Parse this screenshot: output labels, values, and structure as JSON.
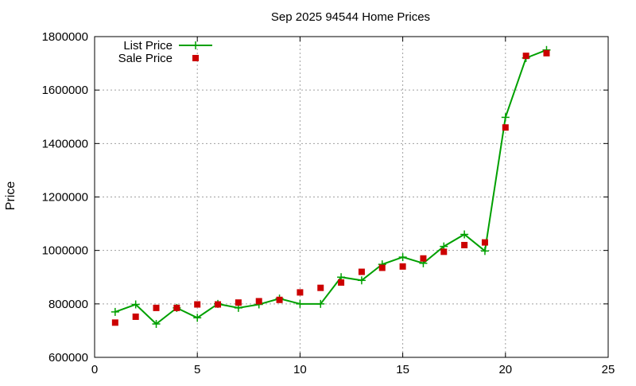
{
  "chart_data": {
    "type": "line",
    "title": "Sep 2025 94544 Home Prices",
    "xlabel": "",
    "ylabel": "Price",
    "xlim": [
      0,
      25
    ],
    "ylim": [
      600000,
      1800000
    ],
    "xticks": [
      0,
      5,
      10,
      15,
      20,
      25
    ],
    "yticks": [
      600000,
      800000,
      1000000,
      1200000,
      1400000,
      1600000,
      1800000
    ],
    "grid": true,
    "legend_position": "top-left",
    "series": [
      {
        "name": "List Price",
        "style": "line+points",
        "color": "#00a000",
        "x": [
          1,
          2,
          3,
          4,
          5,
          6,
          7,
          8,
          9,
          10,
          11,
          12,
          13,
          14,
          15,
          16,
          17,
          18,
          19,
          20,
          21,
          22
        ],
        "values": [
          770000,
          798000,
          725000,
          785000,
          748000,
          800000,
          785000,
          798000,
          820000,
          800000,
          800000,
          900000,
          888000,
          948000,
          975000,
          952000,
          1015000,
          1060000,
          998000,
          1498000,
          1720000,
          1750000
        ]
      },
      {
        "name": "Sale Price",
        "style": "points",
        "color": "#cc0000",
        "x": [
          1,
          2,
          3,
          4,
          5,
          6,
          7,
          8,
          9,
          10,
          11,
          12,
          13,
          14,
          15,
          16,
          17,
          18,
          19,
          20,
          21,
          22
        ],
        "values": [
          730000,
          752000,
          785000,
          785000,
          798000,
          798000,
          805000,
          810000,
          815000,
          843000,
          860000,
          880000,
          920000,
          935000,
          940000,
          970000,
          995000,
          1020000,
          1030000,
          1460000,
          1728000,
          1738000
        ]
      }
    ]
  }
}
